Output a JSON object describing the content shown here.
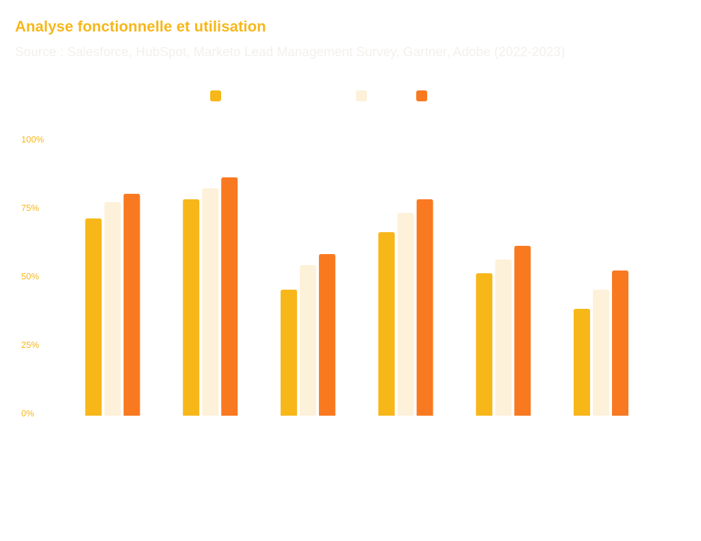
{
  "header": {
    "title": "Analyse fonctionnelle et utilisation",
    "subtitle": "Source : Salesforce, HubSpot, Marketo Lead Management Survey, Gartner, Adobe (2022-2023)"
  },
  "colors": {
    "series": [
      "#f7b719",
      "#fdf1d9",
      "#f97920"
    ],
    "title": "#f7b719",
    "subtitle": "#f3f0ec",
    "tick": "#f7b719"
  },
  "chart_data": {
    "type": "bar",
    "title": "Analyse fonctionnelle et utilisation",
    "subtitle": "Source : Salesforce, HubSpot, Marketo Lead Management Survey, Gartner, Adobe (2022-2023)",
    "categories": [
      "",
      "",
      "",
      "",
      "",
      ""
    ],
    "series": [
      {
        "name": "",
        "values": [
          72,
          79,
          46,
          67,
          52,
          39
        ]
      },
      {
        "name": "",
        "values": [
          78,
          83,
          55,
          74,
          57,
          46
        ]
      },
      {
        "name": "",
        "values": [
          81,
          87,
          59,
          79,
          62,
          53
        ]
      }
    ],
    "y_ticks": [
      "0%",
      "25%",
      "50%",
      "75%",
      "100%"
    ],
    "ylim": [
      0,
      100
    ],
    "xlabel": "",
    "ylabel": "",
    "grid": false,
    "legend_position": "top-center"
  }
}
